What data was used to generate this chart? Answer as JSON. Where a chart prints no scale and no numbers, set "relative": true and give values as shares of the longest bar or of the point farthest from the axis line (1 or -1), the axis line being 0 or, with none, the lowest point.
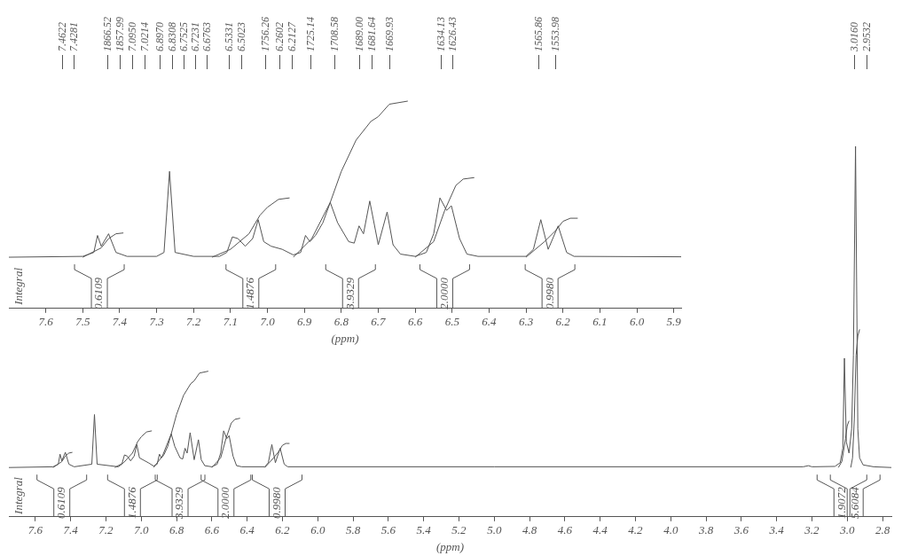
{
  "chart_data": [
    {
      "type": "line",
      "relative": true,
      "xlabel": "(ppm)",
      "ylabel": "Integral",
      "xlim": [
        7.7,
        5.88
      ],
      "xticks": [
        7.6,
        7.5,
        7.4,
        7.3,
        7.2,
        7.1,
        {
          "value": 7,
          "label": "7.0"
        },
        6.9,
        6.8,
        6.7,
        6.6,
        6.5,
        6.4,
        6.3,
        6.2,
        6.1,
        {
          "value": 6,
          "label": "6.0"
        },
        5.9
      ],
      "series": [
        {
          "color": "#555555",
          "x": [
            7.7,
            7.5,
            7.47,
            7.46,
            7.45,
            7.43,
            7.41,
            7.38,
            7.3,
            7.28,
            7.265,
            7.25,
            7.2,
            7.13,
            7.11,
            7.095,
            7.08,
            7.06,
            7.04,
            7.025,
            7.01,
            6.99,
            6.96,
            6.93,
            6.91,
            6.897,
            6.885,
            6.87,
            6.85,
            6.83,
            6.81,
            6.78,
            6.765,
            6.752,
            6.74,
            6.723,
            6.7,
            6.676,
            6.66,
            6.64,
            6.6,
            6.57,
            6.55,
            6.533,
            6.515,
            6.502,
            6.48,
            6.46,
            6.43,
            6.3,
            6.28,
            6.26,
            6.24,
            6.213,
            6.19,
            6.17,
            5.88
          ],
          "values": [
            0.247,
            0.251,
            0.27,
            0.352,
            0.3,
            0.36,
            0.27,
            0.251,
            0.251,
            0.27,
            0.661,
            0.27,
            0.251,
            0.251,
            0.27,
            0.345,
            0.337,
            0.3,
            0.337,
            0.428,
            0.322,
            0.3,
            0.285,
            0.258,
            0.27,
            0.352,
            0.322,
            0.352,
            0.413,
            0.511,
            0.413,
            0.322,
            0.315,
            0.398,
            0.36,
            0.518,
            0.307,
            0.465,
            0.307,
            0.262,
            0.251,
            0.27,
            0.36,
            0.533,
            0.473,
            0.495,
            0.337,
            0.262,
            0.251,
            0.251,
            0.285,
            0.428,
            0.285,
            0.398,
            0.27,
            0.251,
            0.249
          ]
        },
        {
          "color": "#555555",
          "x": [
            7.5,
            7.45,
            7.43,
            7.41,
            7.39
          ],
          "values": [
            0.247,
            0.292,
            0.337,
            0.36,
            0.364
          ]
        },
        {
          "color": "#555555",
          "x": [
            7.15,
            7.1,
            7.05,
            7.02,
            7.0,
            6.97,
            6.94
          ],
          "values": [
            0.247,
            0.285,
            0.36,
            0.45,
            0.488,
            0.526,
            0.533
          ]
        },
        {
          "color": "#555555",
          "x": [
            6.93,
            6.88,
            6.83,
            6.8,
            6.76,
            6.72,
            6.7,
            6.67,
            6.62
          ],
          "values": [
            0.247,
            0.337,
            0.511,
            0.661,
            0.812,
            0.902,
            0.925,
            0.985,
            1
          ]
        },
        {
          "color": "#555555",
          "x": [
            6.6,
            6.55,
            6.52,
            6.49,
            6.47,
            6.44
          ],
          "values": [
            0.247,
            0.322,
            0.473,
            0.593,
            0.624,
            0.631
          ]
        },
        {
          "color": "#555555",
          "x": [
            6.3,
            6.25,
            6.22,
            6.2,
            6.18,
            6.16
          ],
          "values": [
            0.247,
            0.322,
            0.375,
            0.42,
            0.435,
            0.435
          ]
        }
      ],
      "annotations": [
        "7.4622",
        "7.4281",
        "1866.52",
        "1857.99",
        "7.0950",
        "7.0214",
        "6.8970",
        "6.8308",
        "6.7525",
        "6.7231",
        "6.6763",
        "6.5331",
        "6.5023",
        "1756.26",
        "6.2602",
        "6.2127",
        "1725.14",
        "1708.58",
        "1689.00",
        "1681.64",
        "1669.93",
        "1634.13",
        "1626.43",
        "1565.86",
        "1553.98",
        "3.0160",
        "2.9532",
        "0.6109",
        "1.4876",
        "3.9329",
        "2.0000",
        "0.9980"
      ]
    },
    {
      "type": "line",
      "relative": true,
      "xlabel": "(ppm)",
      "ylabel": "Integral",
      "xlim": [
        7.75,
        2.75
      ],
      "xticks": [
        7.6,
        7.4,
        7.2,
        {
          "value": 7,
          "label": "7.0"
        },
        6.8,
        6.6,
        6.4,
        6.2,
        {
          "value": 6,
          "label": "6.0"
        },
        5.8,
        5.6,
        5.4,
        5.2,
        {
          "value": 5,
          "label": "5.0"
        },
        4.8,
        4.6,
        4.4,
        4.2,
        {
          "value": 4,
          "label": "4.0"
        },
        3.8,
        3.6,
        3.4,
        3.2,
        {
          "value": 3,
          "label": "3.0"
        },
        2.8
      ],
      "series": [
        {
          "color": "#555555",
          "x": [
            7.75,
            7.5,
            7.47,
            7.46,
            7.45,
            7.43,
            7.41,
            7.38,
            7.28,
            7.265,
            7.25,
            7.13,
            7.11,
            7.095,
            7.08,
            7.06,
            7.04,
            7.025,
            7.01,
            6.96,
            6.93,
            6.91,
            6.897,
            6.885,
            6.87,
            6.85,
            6.83,
            6.81,
            6.78,
            6.765,
            6.752,
            6.74,
            6.723,
            6.7,
            6.676,
            6.66,
            6.64,
            6.6,
            6.57,
            6.55,
            6.533,
            6.515,
            6.502,
            6.48,
            6.46,
            6.43,
            6.3,
            6.28,
            6.26,
            6.24,
            6.213,
            6.19,
            6.17,
            5.0,
            3.25,
            3.22,
            3.2,
            3.07,
            3.04,
            3.025,
            3.016,
            3.005,
            2.99,
            2.975,
            2.965,
            2.953,
            2.94,
            2.93,
            2.91,
            2.85,
            2.75
          ],
          "values": [
            0.133,
            0.135,
            0.142,
            0.169,
            0.151,
            0.174,
            0.142,
            0.135,
            0.142,
            0.276,
            0.142,
            0.135,
            0.142,
            0.167,
            0.164,
            0.151,
            0.164,
            0.195,
            0.159,
            0.146,
            0.137,
            0.142,
            0.169,
            0.159,
            0.169,
            0.19,
            0.224,
            0.19,
            0.159,
            0.156,
            0.185,
            0.172,
            0.227,
            0.154,
            0.208,
            0.154,
            0.138,
            0.135,
            0.142,
            0.172,
            0.232,
            0.211,
            0.219,
            0.164,
            0.138,
            0.135,
            0.135,
            0.146,
            0.195,
            0.146,
            0.185,
            0.142,
            0.135,
            0.135,
            0.135,
            0.138,
            0.135,
            0.136,
            0.146,
            0.185,
            0.428,
            0.202,
            0.172,
            0.237,
            0.436,
            1,
            0.237,
            0.159,
            0.14,
            0.135,
            0.133
          ]
        },
        {
          "color": "#555555",
          "x": [
            7.5,
            7.45,
            7.43,
            7.41,
            7.39
          ],
          "values": [
            0.133,
            0.149,
            0.164,
            0.172,
            0.174
          ]
        },
        {
          "color": "#555555",
          "x": [
            7.15,
            7.1,
            7.05,
            7.02,
            7.0,
            6.97,
            6.94
          ],
          "values": [
            0.133,
            0.146,
            0.172,
            0.203,
            0.216,
            0.229,
            0.232
          ]
        },
        {
          "color": "#555555",
          "x": [
            6.93,
            6.88,
            6.83,
            6.8,
            6.76,
            6.72,
            6.7,
            6.67,
            6.62
          ],
          "values": [
            0.133,
            0.164,
            0.224,
            0.276,
            0.328,
            0.359,
            0.367,
            0.388,
            0.393
          ]
        },
        {
          "color": "#555555",
          "x": [
            6.6,
            6.55,
            6.52,
            6.49,
            6.47,
            6.44
          ],
          "values": [
            0.133,
            0.159,
            0.211,
            0.253,
            0.263,
            0.266
          ]
        },
        {
          "color": "#555555",
          "x": [
            6.3,
            6.25,
            6.22,
            6.2,
            6.18,
            6.16
          ],
          "values": [
            0.133,
            0.159,
            0.177,
            0.193,
            0.198,
            0.198
          ]
        },
        {
          "color": "#555555",
          "x": [
            3.05,
            3.03,
            3.01,
            3.0,
            2.99
          ],
          "values": [
            0.133,
            0.15,
            0.211,
            0.246,
            0.259
          ]
        },
        {
          "color": "#555555",
          "x": [
            2.98,
            2.97,
            2.96,
            2.95,
            2.94,
            2.93
          ],
          "values": [
            0.133,
            0.159,
            0.263,
            0.436,
            0.488,
            0.506
          ]
        }
      ],
      "annotations": [
        "0.6109",
        "1.4876",
        "3.9329",
        "2.0000",
        "0.9980",
        "1.9072",
        "5.6084"
      ]
    }
  ]
}
